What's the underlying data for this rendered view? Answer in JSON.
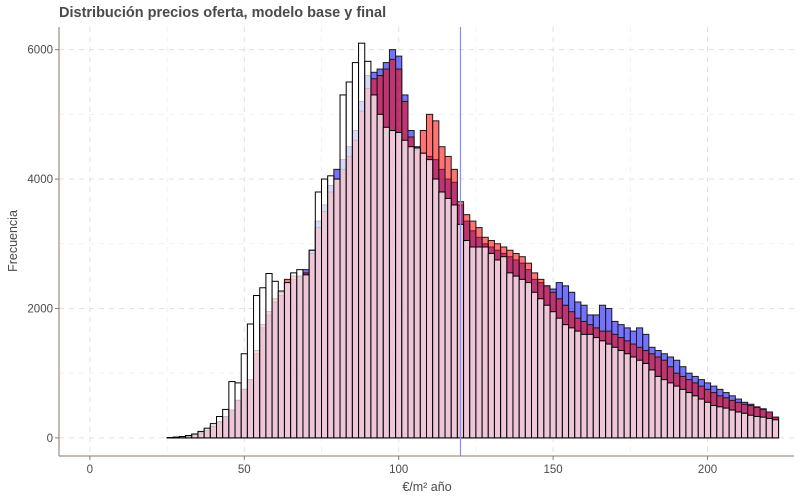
{
  "chart_data": {
    "type": "histogram",
    "title": "Distribución precios oferta, modelo base y final",
    "xlabel": "€/m² año",
    "ylabel": "Frecuencia",
    "xlim": [
      -10,
      228
    ],
    "ylim": [
      -280,
      6350
    ],
    "x_ticks": [
      0,
      50,
      100,
      150,
      200
    ],
    "y_ticks": [
      0,
      2000,
      4000,
      6000
    ],
    "x_tick_labels": [
      "0",
      "50",
      "100",
      "150",
      "200"
    ],
    "y_tick_labels": [
      "0",
      "2000",
      "4000",
      "6000"
    ],
    "grid": true,
    "grid_style": "dashed",
    "legend": "none",
    "bin_width": 2,
    "bin_starts": [
      1,
      3,
      5,
      7,
      9,
      11,
      13,
      15,
      17,
      19,
      21,
      23,
      25,
      27,
      29,
      31,
      33,
      35,
      37,
      39,
      41,
      43,
      45,
      47,
      49,
      51,
      53,
      55,
      57,
      59,
      61,
      63,
      65,
      67,
      69,
      71,
      73,
      75,
      77,
      79,
      81,
      83,
      85,
      87,
      89,
      91,
      93,
      95,
      97,
      99,
      101,
      103,
      105,
      107,
      109,
      111,
      113,
      115,
      117,
      119,
      121,
      123,
      125,
      127,
      129,
      131,
      133,
      135,
      137,
      139,
      141,
      143,
      145,
      147,
      149,
      151,
      153,
      155,
      157,
      159,
      161,
      163,
      165,
      167,
      169,
      171,
      173,
      175,
      177,
      179,
      181,
      183,
      185,
      187,
      189,
      191,
      193,
      195,
      197,
      199,
      201,
      203,
      205,
      207,
      209,
      211,
      213,
      215,
      217,
      219,
      221
    ],
    "series": [
      {
        "fill": "#0000ff",
        "fill_opacity": 0.55,
        "stroke": "#1a1a1a",
        "values": [
          0,
          0,
          0,
          0,
          0,
          0,
          0,
          0,
          0,
          0,
          0,
          0,
          5,
          10,
          20,
          35,
          50,
          80,
          120,
          180,
          250,
          330,
          430,
          580,
          750,
          900,
          1300,
          1700,
          1900,
          2100,
          2200,
          2400,
          2450,
          2500,
          2600,
          2900,
          3350,
          3600,
          3900,
          4150,
          4300,
          4500,
          4750,
          5200,
          5600,
          5650,
          5700,
          5800,
          6000,
          5900,
          5300,
          4750,
          4500,
          4400,
          4350,
          4300,
          4150,
          4000,
          3950,
          3600,
          3350,
          3200,
          3100,
          3000,
          2950,
          2900,
          2850,
          2800,
          2750,
          2700,
          2600,
          2450,
          2400,
          2350,
          2300,
          2400,
          2350,
          2250,
          2100,
          2050,
          1900,
          1900,
          2050,
          2000,
          1800,
          1750,
          1700,
          1650,
          1700,
          1600,
          1400,
          1350,
          1300,
          1250,
          1200,
          1100,
          1000,
          950,
          900,
          850,
          800,
          750,
          700,
          650,
          600,
          550,
          520,
          480,
          450,
          400,
          320
        ]
      },
      {
        "fill": "#ff0000",
        "fill_opacity": 0.55,
        "stroke": "#1a1a1a",
        "values": [
          0,
          0,
          0,
          0,
          0,
          0,
          0,
          0,
          0,
          0,
          0,
          0,
          5,
          10,
          20,
          35,
          50,
          80,
          120,
          180,
          250,
          330,
          430,
          580,
          750,
          900,
          1350,
          1750,
          1950,
          2150,
          2250,
          2450,
          2500,
          2500,
          2550,
          2850,
          3250,
          3500,
          3800,
          4000,
          4150,
          4350,
          4600,
          5050,
          5400,
          5550,
          5600,
          5700,
          5850,
          5700,
          5200,
          4650,
          4450,
          4750,
          5000,
          4900,
          4500,
          4350,
          4150,
          3650,
          3450,
          3350,
          3250,
          3100,
          3050,
          3000,
          2950,
          2900,
          2850,
          2800,
          2700,
          2550,
          2450,
          2350,
          2250,
          2150,
          2050,
          1950,
          1850,
          1800,
          1750,
          1700,
          1650,
          1650,
          1600,
          1550,
          1500,
          1450,
          1400,
          1350,
          1300,
          1250,
          1200,
          1100,
          1000,
          950,
          900,
          850,
          800,
          750,
          700,
          650,
          620,
          580,
          550,
          520,
          500,
          470,
          440,
          400,
          320
        ]
      },
      {
        "fill": "#ffffff",
        "fill_opacity": 0.72,
        "stroke": "#000000",
        "values": [
          0,
          0,
          0,
          0,
          0,
          0,
          0,
          0,
          0,
          0,
          0,
          0,
          5,
          10,
          20,
          35,
          60,
          100,
          150,
          220,
          330,
          440,
          870,
          850,
          1300,
          1760,
          2200,
          2320,
          2540,
          2420,
          2270,
          2400,
          2550,
          2600,
          2520,
          2900,
          3800,
          4000,
          4050,
          4000,
          5300,
          5500,
          5800,
          6100,
          5820,
          5300,
          5000,
          4800,
          4750,
          4720,
          4600,
          4500,
          4480,
          4400,
          4300,
          4000,
          3800,
          3700,
          3600,
          3300,
          3050,
          2950,
          2950,
          2950,
          2850,
          2750,
          2800,
          2550,
          2500,
          2450,
          2400,
          2250,
          2150,
          2050,
          1950,
          1850,
          1750,
          1700,
          1650,
          1600,
          1600,
          1550,
          1500,
          1450,
          1400,
          1350,
          1300,
          1250,
          1200,
          1150,
          1050,
          950,
          900,
          850,
          800,
          750,
          700,
          650,
          600,
          550,
          500,
          480,
          460,
          430,
          400,
          380,
          350,
          330,
          320,
          300,
          280
        ]
      }
    ],
    "vline": {
      "x": 120,
      "color": "#8c8cf0"
    }
  }
}
